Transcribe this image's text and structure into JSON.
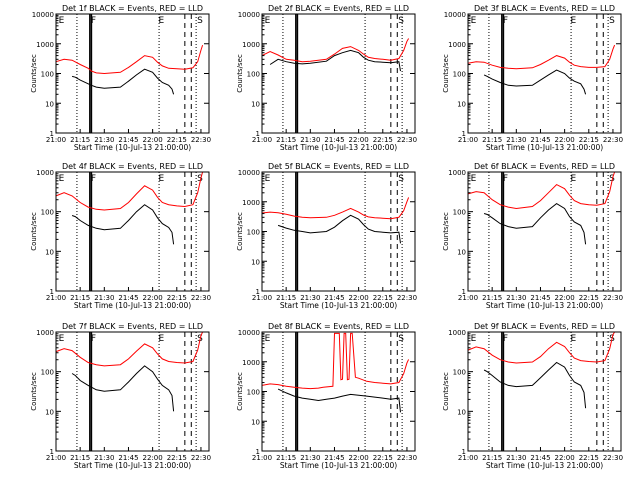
{
  "figure": {
    "start_time_label": "Start Time (10-Jul-13 21:00:00)",
    "ylabel": "Counts/sec",
    "x_ticks": [
      "21:00",
      "21:15",
      "21:30",
      "21:45",
      "22:00",
      "22:15",
      "22:30"
    ],
    "y_ticks": [
      "1",
      "10",
      "100",
      "1000",
      "10000"
    ],
    "colors": {
      "events": "#000000",
      "lld": "#ff0000"
    }
  },
  "chart_data": [
    {
      "type": "line",
      "title": "Det 1f BLACK = Events, RED = LLD",
      "ylim": [
        1,
        10000
      ],
      "yscale": "log",
      "xlabel": "Start Time (10-Jul-13 21:00:00)",
      "ylabel": "Counts/sec",
      "markers": [
        "E",
        "F",
        "E",
        "S"
      ],
      "lld": {
        "x": [
          0,
          5,
          10,
          15,
          20,
          22,
          25,
          30,
          40,
          45,
          50,
          55,
          60,
          63,
          66,
          70,
          75,
          80,
          85,
          88,
          90,
          91
        ],
        "y": [
          250,
          300,
          280,
          200,
          150,
          120,
          105,
          100,
          110,
          160,
          250,
          400,
          350,
          240,
          180,
          150,
          145,
          140,
          155,
          250,
          600,
          900
        ]
      },
      "events": {
        "x": [
          10,
          12,
          15,
          20,
          22,
          25,
          30,
          40,
          45,
          50,
          55,
          60,
          63,
          66,
          70,
          72,
          73
        ],
        "y": [
          80,
          75,
          60,
          45,
          40,
          35,
          32,
          35,
          55,
          90,
          140,
          110,
          70,
          50,
          40,
          30,
          20
        ]
      },
      "vlines_dotted": [
        13,
        64,
        87
      ],
      "vlines_solid": [
        21,
        22
      ],
      "vlines_dashed": [
        80,
        84
      ]
    },
    {
      "type": "line",
      "title": "Det 2f BLACK = Events, RED = LLD",
      "ylim": [
        1,
        10000
      ],
      "yscale": "log",
      "xlabel": "Start Time (10-Jul-13 21:00:00)",
      "ylabel": "Counts/sec",
      "markers": [
        "E",
        "S"
      ],
      "lld": {
        "x": [
          0,
          5,
          10,
          15,
          20,
          25,
          30,
          40,
          45,
          50,
          55,
          60,
          63,
          66,
          70,
          75,
          80,
          85,
          88,
          90,
          91
        ],
        "y": [
          400,
          550,
          420,
          300,
          280,
          250,
          260,
          300,
          450,
          700,
          800,
          600,
          450,
          350,
          320,
          300,
          280,
          320,
          600,
          1200,
          1500
        ]
      },
      "events": {
        "x": [
          5,
          10,
          15,
          20,
          25,
          30,
          40,
          45,
          50,
          55,
          60,
          63,
          66,
          70,
          75,
          80,
          85,
          86
        ],
        "y": [
          200,
          300,
          250,
          220,
          210,
          220,
          260,
          400,
          500,
          600,
          500,
          350,
          280,
          250,
          240,
          230,
          250,
          120
        ]
      },
      "vlines_dotted": [
        13,
        64,
        87
      ],
      "vlines_solid": [
        21,
        22
      ],
      "vlines_dashed": [
        80,
        84
      ]
    },
    {
      "type": "line",
      "title": "Det 3f BLACK = Events, RED = LLD",
      "ylim": [
        1,
        10000
      ],
      "yscale": "log",
      "xlabel": "Start Time (10-Jul-13 21:00:00)",
      "ylabel": "Counts/sec",
      "markers": [
        "E",
        "F",
        "E",
        "S"
      ],
      "lld": {
        "x": [
          0,
          5,
          10,
          15,
          20,
          25,
          30,
          40,
          45,
          50,
          55,
          60,
          63,
          66,
          70,
          75,
          80,
          85,
          88,
          90,
          91
        ],
        "y": [
          220,
          250,
          240,
          190,
          160,
          150,
          145,
          155,
          200,
          280,
          400,
          330,
          240,
          190,
          170,
          160,
          160,
          170,
          300,
          650,
          900
        ]
      },
      "events": {
        "x": [
          10,
          12,
          15,
          20,
          25,
          30,
          40,
          45,
          50,
          55,
          60,
          63,
          66,
          70,
          72,
          73
        ],
        "y": [
          90,
          80,
          65,
          50,
          40,
          38,
          40,
          60,
          90,
          130,
          100,
          70,
          55,
          45,
          30,
          20
        ]
      },
      "vlines_dotted": [
        13,
        64,
        87
      ],
      "vlines_solid": [
        21,
        22
      ],
      "vlines_dashed": [
        80,
        84
      ]
    },
    {
      "type": "line",
      "title": "Det 4f BLACK = Events, RED = LLD",
      "ylim": [
        1,
        1000
      ],
      "yscale": "log",
      "xlabel": "Start Time (10-Jul-13 21:00:00)",
      "ylabel": "Counts/sec",
      "markers": [
        "E",
        "F",
        "E",
        "S"
      ],
      "lld": {
        "x": [
          0,
          5,
          10,
          15,
          20,
          25,
          30,
          40,
          45,
          50,
          55,
          60,
          63,
          66,
          70,
          75,
          80,
          85,
          88,
          90,
          91
        ],
        "y": [
          250,
          300,
          250,
          170,
          130,
          115,
          110,
          120,
          170,
          280,
          450,
          350,
          230,
          170,
          150,
          140,
          135,
          150,
          300,
          700,
          1000
        ]
      },
      "events": {
        "x": [
          10,
          12,
          15,
          20,
          25,
          30,
          40,
          45,
          50,
          55,
          60,
          63,
          66,
          70,
          72,
          73
        ],
        "y": [
          80,
          75,
          60,
          45,
          38,
          35,
          38,
          60,
          100,
          150,
          110,
          70,
          50,
          40,
          30,
          15
        ]
      },
      "vlines_dotted": [
        13,
        64,
        87
      ],
      "vlines_solid": [
        21,
        22
      ],
      "vlines_dashed": [
        80,
        84
      ]
    },
    {
      "type": "line",
      "title": "Det 5f BLACK = Events, RED = LLD",
      "ylim": [
        1,
        10000
      ],
      "yscale": "log",
      "xlabel": "Start Time (10-Jul-13 21:00:00)",
      "ylabel": "Counts/sec",
      "markers": [
        "E",
        "S"
      ],
      "lld": {
        "x": [
          0,
          5,
          10,
          15,
          20,
          25,
          30,
          40,
          45,
          50,
          55,
          60,
          63,
          66,
          70,
          75,
          80,
          85,
          88,
          90,
          91
        ],
        "y": [
          420,
          450,
          430,
          380,
          330,
          300,
          290,
          300,
          350,
          450,
          600,
          450,
          360,
          310,
          290,
          280,
          270,
          300,
          500,
          1000,
          1400
        ]
      },
      "events": {
        "x": [
          10,
          15,
          20,
          25,
          30,
          40,
          45,
          50,
          55,
          60,
          63,
          66,
          70,
          75,
          80,
          85,
          86
        ],
        "y": [
          160,
          130,
          110,
          100,
          90,
          100,
          140,
          230,
          350,
          260,
          170,
          120,
          100,
          95,
          90,
          95,
          40
        ]
      },
      "vlines_dotted": [
        13,
        64,
        87
      ],
      "vlines_solid": [
        21,
        22
      ],
      "vlines_dashed": [
        80,
        84
      ]
    },
    {
      "type": "line",
      "title": "Det 6f BLACK = Events, RED = LLD",
      "ylim": [
        1,
        1000
      ],
      "yscale": "log",
      "xlabel": "Start Time (10-Jul-13 21:00:00)",
      "ylabel": "Counts/sec",
      "markers": [
        "E",
        "F",
        "E",
        "S"
      ],
      "lld": {
        "x": [
          0,
          5,
          10,
          15,
          20,
          25,
          30,
          40,
          45,
          50,
          55,
          60,
          63,
          66,
          70,
          75,
          80,
          85,
          88,
          90,
          91
        ],
        "y": [
          280,
          320,
          300,
          200,
          150,
          130,
          120,
          135,
          190,
          300,
          480,
          380,
          260,
          190,
          160,
          150,
          145,
          160,
          320,
          750,
          1000
        ]
      },
      "events": {
        "x": [
          10,
          12,
          15,
          20,
          25,
          30,
          40,
          45,
          50,
          55,
          60,
          63,
          66,
          70,
          72,
          73
        ],
        "y": [
          90,
          85,
          70,
          50,
          42,
          38,
          42,
          70,
          110,
          160,
          120,
          75,
          55,
          45,
          30,
          15
        ]
      },
      "vlines_dotted": [
        13,
        64,
        87
      ],
      "vlines_solid": [
        21,
        22
      ],
      "vlines_dashed": [
        80,
        84
      ]
    },
    {
      "type": "line",
      "title": "Det 7f BLACK = Events, RED = LLD",
      "ylim": [
        1,
        1000
      ],
      "yscale": "log",
      "xlabel": "Start Time (10-Jul-13 21:00:00)",
      "ylabel": "Counts/sec",
      "markers": [
        "E",
        "F",
        "E",
        "S"
      ],
      "lld": {
        "x": [
          0,
          5,
          10,
          15,
          20,
          25,
          30,
          40,
          45,
          50,
          55,
          60,
          63,
          66,
          70,
          75,
          80,
          85,
          88,
          90,
          91
        ],
        "y": [
          320,
          380,
          340,
          230,
          170,
          150,
          140,
          150,
          210,
          330,
          500,
          400,
          280,
          210,
          180,
          170,
          165,
          180,
          350,
          800,
          1000
        ]
      },
      "events": {
        "x": [
          10,
          12,
          15,
          20,
          25,
          30,
          40,
          45,
          50,
          55,
          60,
          63,
          66,
          70,
          72,
          73
        ],
        "y": [
          90,
          80,
          60,
          45,
          35,
          32,
          35,
          55,
          90,
          140,
          100,
          65,
          45,
          35,
          25,
          10
        ]
      },
      "vlines_dotted": [
        13,
        64,
        87
      ],
      "vlines_solid": [
        21,
        22
      ],
      "vlines_dashed": [
        80,
        84
      ]
    },
    {
      "type": "line",
      "title": "Det 8f BLACK = Events, RED = LLD",
      "ylim": [
        1,
        10000
      ],
      "yscale": "log",
      "xlabel": "Start Time (10-Jul-13 21:00:00)",
      "ylabel": "Counts/sec",
      "markers": [
        "E",
        "S"
      ],
      "lld": {
        "x": [
          0,
          5,
          10,
          15,
          20,
          25,
          30,
          35,
          38,
          44,
          45,
          46,
          48,
          49,
          50,
          51,
          52,
          53,
          54,
          55,
          56,
          58,
          60,
          65,
          70,
          75,
          80,
          85,
          88,
          90,
          91
        ],
        "y": [
          160,
          180,
          170,
          150,
          140,
          130,
          125,
          130,
          140,
          150,
          9000,
          9000,
          9000,
          250,
          260,
          9000,
          9000,
          250,
          260,
          9000,
          9000,
          300,
          280,
          220,
          200,
          190,
          180,
          200,
          400,
          900,
          1200
        ]
      },
      "events": {
        "x": [
          10,
          15,
          20,
          25,
          30,
          35,
          40,
          45,
          50,
          55,
          60,
          65,
          70,
          75,
          80,
          85,
          86
        ],
        "y": [
          120,
          90,
          70,
          60,
          55,
          50,
          55,
          60,
          70,
          80,
          75,
          70,
          65,
          60,
          55,
          60,
          20
        ]
      },
      "vlines_dotted": [
        13,
        64,
        87
      ],
      "vlines_solid": [
        21,
        22
      ],
      "vlines_dashed": [
        80,
        84
      ]
    },
    {
      "type": "line",
      "title": "Det 9f BLACK = Events, RED = LLD",
      "ylim": [
        1,
        1000
      ],
      "yscale": "log",
      "xlabel": "Start Time (10-Jul-13 21:00:00)",
      "ylabel": "Counts/sec",
      "markers": [
        "E",
        "F",
        "E",
        "S"
      ],
      "lld": {
        "x": [
          0,
          5,
          10,
          15,
          20,
          25,
          30,
          40,
          45,
          50,
          55,
          60,
          63,
          66,
          70,
          75,
          80,
          85,
          88,
          90,
          91
        ],
        "y": [
          350,
          420,
          380,
          260,
          200,
          175,
          165,
          175,
          240,
          380,
          550,
          430,
          300,
          220,
          190,
          180,
          175,
          190,
          380,
          850,
          1000
        ]
      },
      "events": {
        "x": [
          10,
          12,
          15,
          20,
          25,
          30,
          40,
          45,
          50,
          55,
          60,
          63,
          66,
          70,
          72,
          73
        ],
        "y": [
          110,
          100,
          80,
          55,
          45,
          42,
          45,
          70,
          110,
          170,
          130,
          80,
          55,
          45,
          30,
          12
        ]
      },
      "vlines_dotted": [
        13,
        64,
        87
      ],
      "vlines_solid": [
        21,
        22
      ],
      "vlines_dashed": [
        80,
        84
      ]
    }
  ]
}
